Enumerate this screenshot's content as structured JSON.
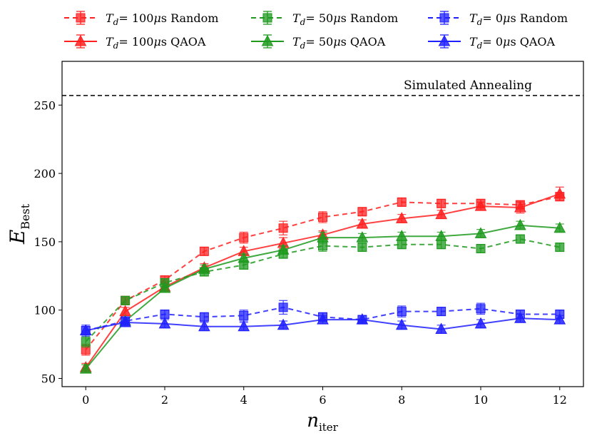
{
  "chart_data": {
    "type": "line",
    "title": "",
    "xlabel": "n_iter",
    "ylabel": "E_Best",
    "xlim": [
      -0.6,
      12.6
    ],
    "ylim": [
      44,
      282
    ],
    "xticks": [
      0,
      2,
      4,
      6,
      8,
      10,
      12
    ],
    "yticks": [
      50,
      100,
      150,
      200,
      250
    ],
    "grid": false,
    "legend_position": "top, above plot, 3 columns",
    "x": [
      0,
      1,
      2,
      3,
      4,
      5,
      6,
      7,
      8,
      9,
      10,
      11,
      12
    ],
    "series": [
      {
        "name": "T_d = 100μs Random",
        "legend_main": "= 100",
        "legend_mu": "μ",
        "legend_tail": "s Random",
        "color": "#ff2020",
        "style": "dashed",
        "marker": "square",
        "values": [
          71,
          107,
          122,
          143,
          153,
          160,
          168,
          172,
          179,
          178,
          178,
          177,
          183
        ],
        "errors": [
          4,
          3,
          3,
          3,
          4,
          5,
          4,
          3,
          3,
          3,
          3,
          3,
          3
        ]
      },
      {
        "name": "T_d = 100μs QAOA",
        "legend_main": "= 100",
        "legend_mu": "μ",
        "legend_tail": "s QAOA",
        "color": "#ff2020",
        "style": "solid",
        "marker": "triangle",
        "values": [
          58,
          99,
          117,
          131,
          143,
          149,
          155,
          163,
          167,
          170,
          176,
          175,
          185
        ],
        "errors": [
          3,
          3,
          3,
          3,
          3,
          4,
          3,
          3,
          3,
          3,
          3,
          4,
          5
        ]
      },
      {
        "name": "T_d = 50μs Random",
        "legend_main": "= 50",
        "legend_mu": "μ",
        "legend_tail": "s Random",
        "color": "#1f9a1f",
        "style": "dashed",
        "marker": "square",
        "values": [
          77,
          107,
          120,
          128,
          133,
          141,
          147,
          146,
          148,
          148,
          145,
          152,
          146
        ],
        "errors": [
          4,
          3,
          3,
          3,
          3,
          3,
          4,
          3,
          3,
          3,
          3,
          3,
          3
        ]
      },
      {
        "name": "T_d = 50μs QAOA",
        "legend_main": "= 50",
        "legend_mu": "μ",
        "legend_tail": "s QAOA",
        "color": "#1f9a1f",
        "style": "solid",
        "marker": "triangle",
        "values": [
          57,
          92,
          116,
          130,
          138,
          144,
          153,
          153,
          154,
          154,
          156,
          162,
          160
        ],
        "errors": [
          3,
          3,
          3,
          3,
          3,
          3,
          4,
          3,
          3,
          3,
          3,
          3,
          3
        ]
      },
      {
        "name": "T_d = 0μs Random",
        "legend_main": "= 0",
        "legend_mu": "μ",
        "legend_tail": "s Random",
        "color": "#2020ff",
        "style": "dashed",
        "marker": "square",
        "values": [
          85,
          92,
          97,
          95,
          96,
          102,
          95,
          93,
          99,
          99,
          101,
          97,
          97
        ],
        "errors": [
          4,
          3,
          3,
          3,
          4,
          5,
          3,
          3,
          4,
          3,
          4,
          3,
          3
        ]
      },
      {
        "name": "T_d = 0μs QAOA",
        "legend_main": "= 0",
        "legend_mu": "μ",
        "legend_tail": "s QAOA",
        "color": "#2020ff",
        "style": "solid",
        "marker": "triangle",
        "values": [
          85,
          91,
          90,
          88,
          88,
          89,
          93,
          93,
          89,
          86,
          90,
          94,
          93
        ],
        "errors": [
          3,
          3,
          3,
          3,
          3,
          3,
          3,
          3,
          3,
          3,
          3,
          3,
          3
        ]
      }
    ],
    "reference_line": {
      "label": "Simulated Annealing",
      "value": 257,
      "style": "dashed",
      "color": "#000000"
    }
  },
  "labels": {
    "x_main": "n",
    "x_sub": "iter",
    "y_main": "E",
    "y_sub": "Best",
    "legend_prefix": "T",
    "legend_prefix_sub": "d"
  }
}
